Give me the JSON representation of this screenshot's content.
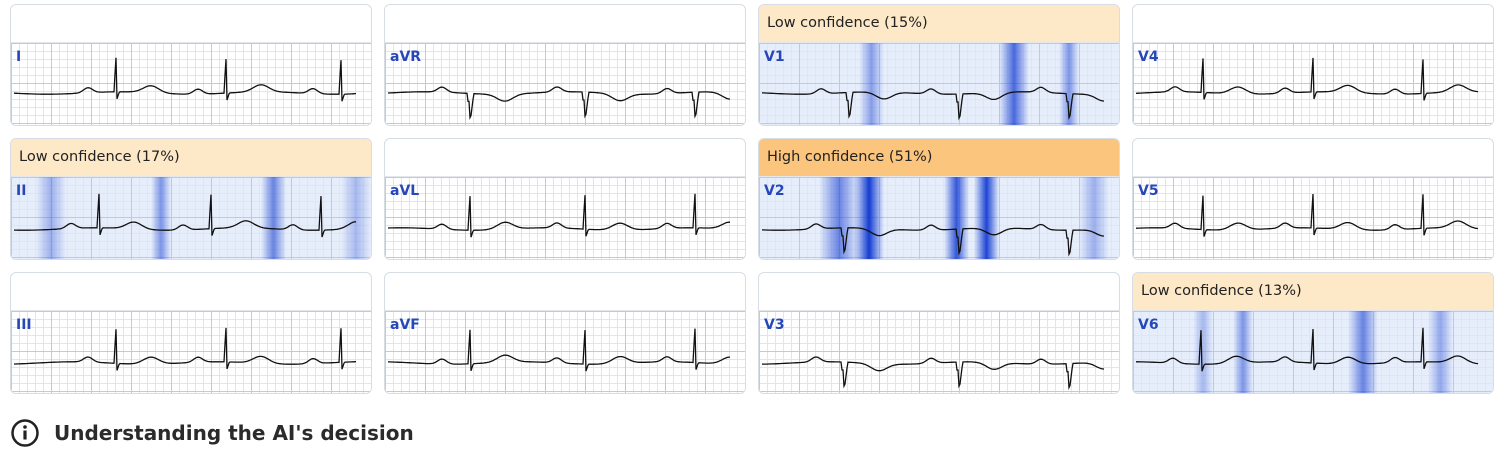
{
  "leads": [
    {
      "name": "I"
    },
    {
      "name": "II",
      "confidence": "Low confidence (17%)",
      "level": "low"
    },
    {
      "name": "III"
    },
    {
      "name": "aVR"
    },
    {
      "name": "aVL"
    },
    {
      "name": "aVF"
    },
    {
      "name": "V1",
      "confidence": "Low confidence (15%)",
      "level": "low"
    },
    {
      "name": "V2",
      "confidence": "High confidence (51%)",
      "level": "high"
    },
    {
      "name": "V3"
    },
    {
      "name": "V4"
    },
    {
      "name": "V5"
    },
    {
      "name": "V6",
      "confidence": "Low confidence (13%)",
      "level": "low"
    }
  ],
  "footer": {
    "text": "Understanding the AI's decision"
  }
}
